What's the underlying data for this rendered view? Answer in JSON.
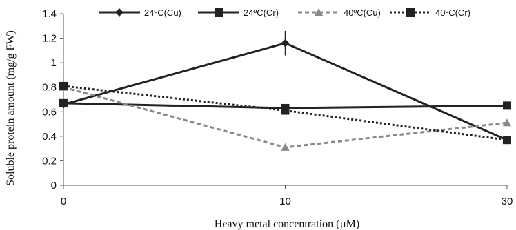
{
  "chart_data": {
    "type": "line",
    "title": "",
    "xlabel": "Heavy metal concentration (µM)",
    "ylabel": "Soluble protein amount (mg/g FW)",
    "categories": [
      "0",
      "10",
      "30"
    ],
    "ylim": [
      0,
      1.4
    ],
    "yticks": [
      "0",
      "0.2",
      "0.4",
      "0.6",
      "0.8",
      "1",
      "1.2",
      "1.4"
    ],
    "grid": false,
    "legend_position": "top",
    "series": [
      {
        "name": "24ºC(Cu)",
        "values": [
          0.66,
          1.16,
          0.37
        ],
        "errors": [
          0.0,
          0.1,
          0.0
        ],
        "color": "#222222",
        "line": "solid",
        "marker": "diamond"
      },
      {
        "name": "24ºC(Cr)",
        "values": [
          0.67,
          0.63,
          0.65
        ],
        "errors": [
          0.0,
          0.0,
          0.0
        ],
        "color": "#222222",
        "line": "solid",
        "marker": "square"
      },
      {
        "name": "40ºC(Cu)",
        "values": [
          0.8,
          0.31,
          0.51
        ],
        "errors": [
          0.07,
          0.0,
          0.0
        ],
        "color": "#888888",
        "line": "dashed",
        "marker": "triangle"
      },
      {
        "name": "40ºC(Cr)",
        "values": [
          0.81,
          0.61,
          0.37
        ],
        "errors": [
          0.0,
          0.0,
          0.0
        ],
        "color": "#222222",
        "line": "dotted",
        "marker": "square"
      }
    ]
  }
}
